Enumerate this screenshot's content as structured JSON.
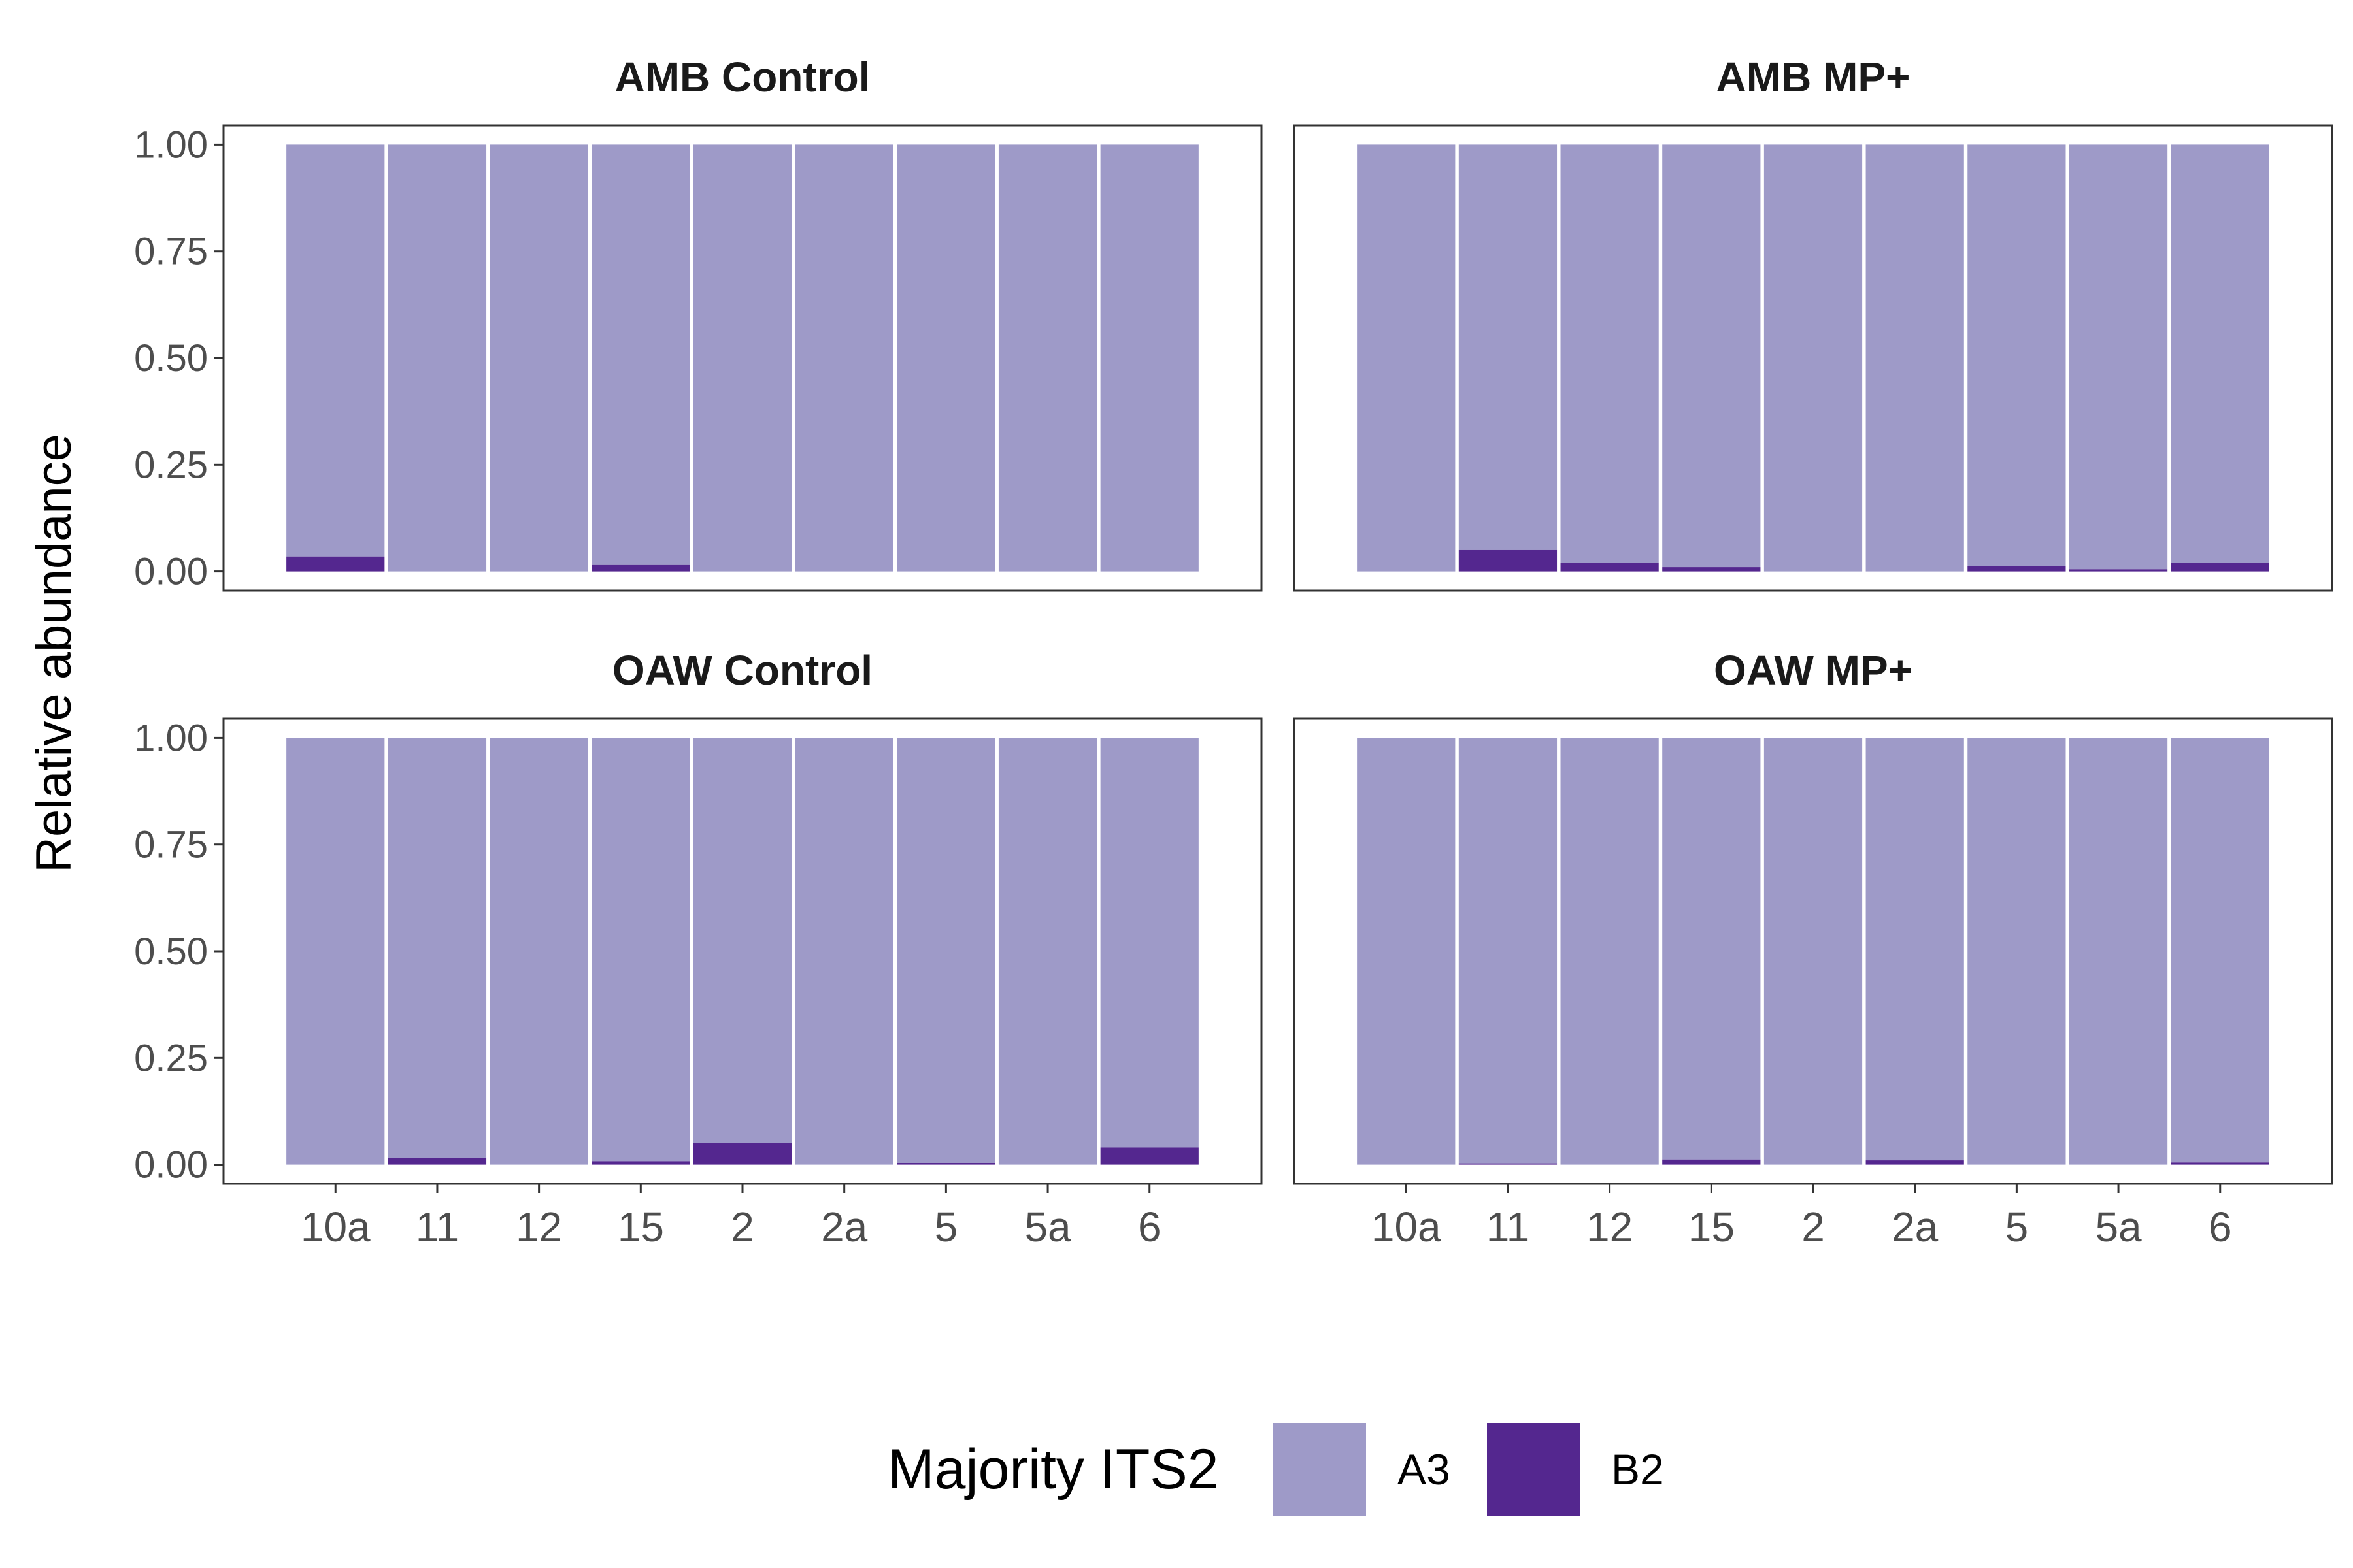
{
  "chart_data": {
    "type": "bar",
    "stacked": true,
    "ylabel": "Relative abundance",
    "ylim": [
      0,
      1
    ],
    "yticks": [
      "0.00",
      "0.25",
      "0.50",
      "0.75",
      "1.00"
    ],
    "categories": [
      "10a",
      "11",
      "12",
      "15",
      "2",
      "2a",
      "5",
      "5a",
      "6"
    ],
    "legend": {
      "title": "Majority ITS2",
      "position": "bottom",
      "entries": [
        {
          "name": "A3",
          "color": "#9e9ac8"
        },
        {
          "name": "B2",
          "color": "#54278f"
        }
      ]
    },
    "grid": false,
    "facets": [
      {
        "title": "AMB Control",
        "B2": [
          0.035,
          0,
          0,
          0.015,
          0,
          0,
          0,
          0,
          0
        ]
      },
      {
        "title": "AMB MP+",
        "B2": [
          0,
          0.05,
          0.02,
          0.01,
          0,
          0,
          0.012,
          0.005,
          0.02
        ]
      },
      {
        "title": "OAW Control",
        "B2": [
          0,
          0.015,
          0,
          0.008,
          0.05,
          0,
          0.004,
          0,
          0.04
        ]
      },
      {
        "title": "OAW MP+",
        "B2": [
          0,
          0.003,
          0,
          0.012,
          0,
          0.01,
          0,
          0,
          0.005
        ]
      }
    ]
  }
}
